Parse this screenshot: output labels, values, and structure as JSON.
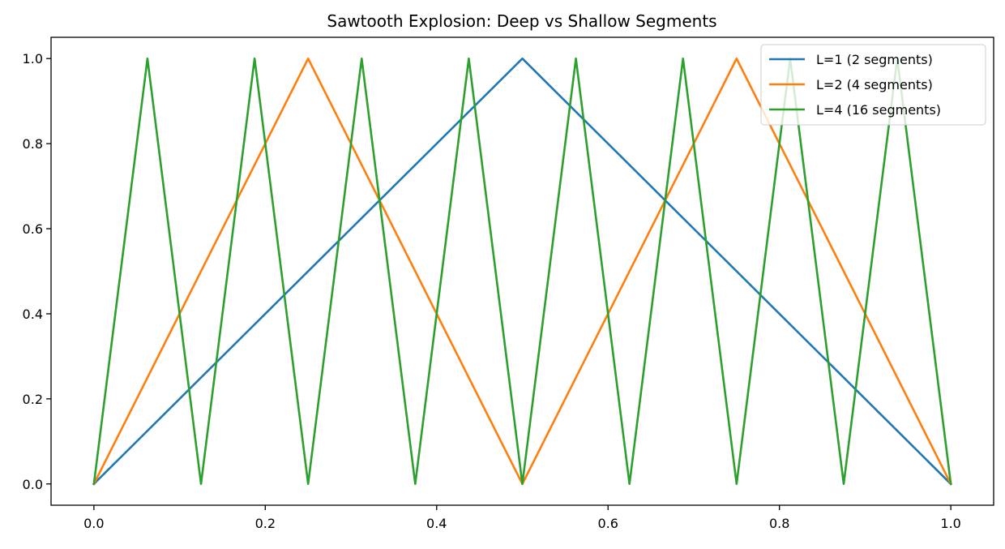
{
  "chart_data": {
    "type": "line",
    "title": "Sawtooth Explosion: Deep vs Shallow Segments",
    "xlabel": "",
    "ylabel": "",
    "xlim": [
      -0.05,
      1.05
    ],
    "ylim": [
      -0.05,
      1.05
    ],
    "xticks": [
      0.0,
      0.2,
      0.4,
      0.6,
      0.8,
      1.0
    ],
    "xtick_labels": [
      "0.0",
      "0.2",
      "0.4",
      "0.6",
      "0.8",
      "1.0"
    ],
    "yticks": [
      0.0,
      0.2,
      0.4,
      0.6,
      0.8,
      1.0
    ],
    "ytick_labels": [
      "0.0",
      "0.2",
      "0.4",
      "0.6",
      "0.8",
      "1.0"
    ],
    "grid": false,
    "legend_position": "top-right",
    "series": [
      {
        "name": "L=1 (2 segments)",
        "color": "#1f77b4",
        "x": [
          0.0,
          0.5,
          1.0
        ],
        "y": [
          0.0,
          1.0,
          0.0
        ]
      },
      {
        "name": "L=2 (4 segments)",
        "color": "#ff7f0e",
        "x": [
          0.0,
          0.25,
          0.5,
          0.75,
          1.0
        ],
        "y": [
          0.0,
          1.0,
          0.0,
          1.0,
          0.0
        ]
      },
      {
        "name": "L=4 (16 segments)",
        "color": "#2ca02c",
        "x": [
          0.0,
          0.0625,
          0.125,
          0.1875,
          0.25,
          0.3125,
          0.375,
          0.4375,
          0.5,
          0.5625,
          0.625,
          0.6875,
          0.75,
          0.8125,
          0.875,
          0.9375,
          1.0
        ],
        "y": [
          0.0,
          1.0,
          0.0,
          1.0,
          0.0,
          1.0,
          0.0,
          1.0,
          0.0,
          1.0,
          0.0,
          1.0,
          0.0,
          1.0,
          0.0,
          1.0,
          0.0
        ]
      }
    ]
  }
}
